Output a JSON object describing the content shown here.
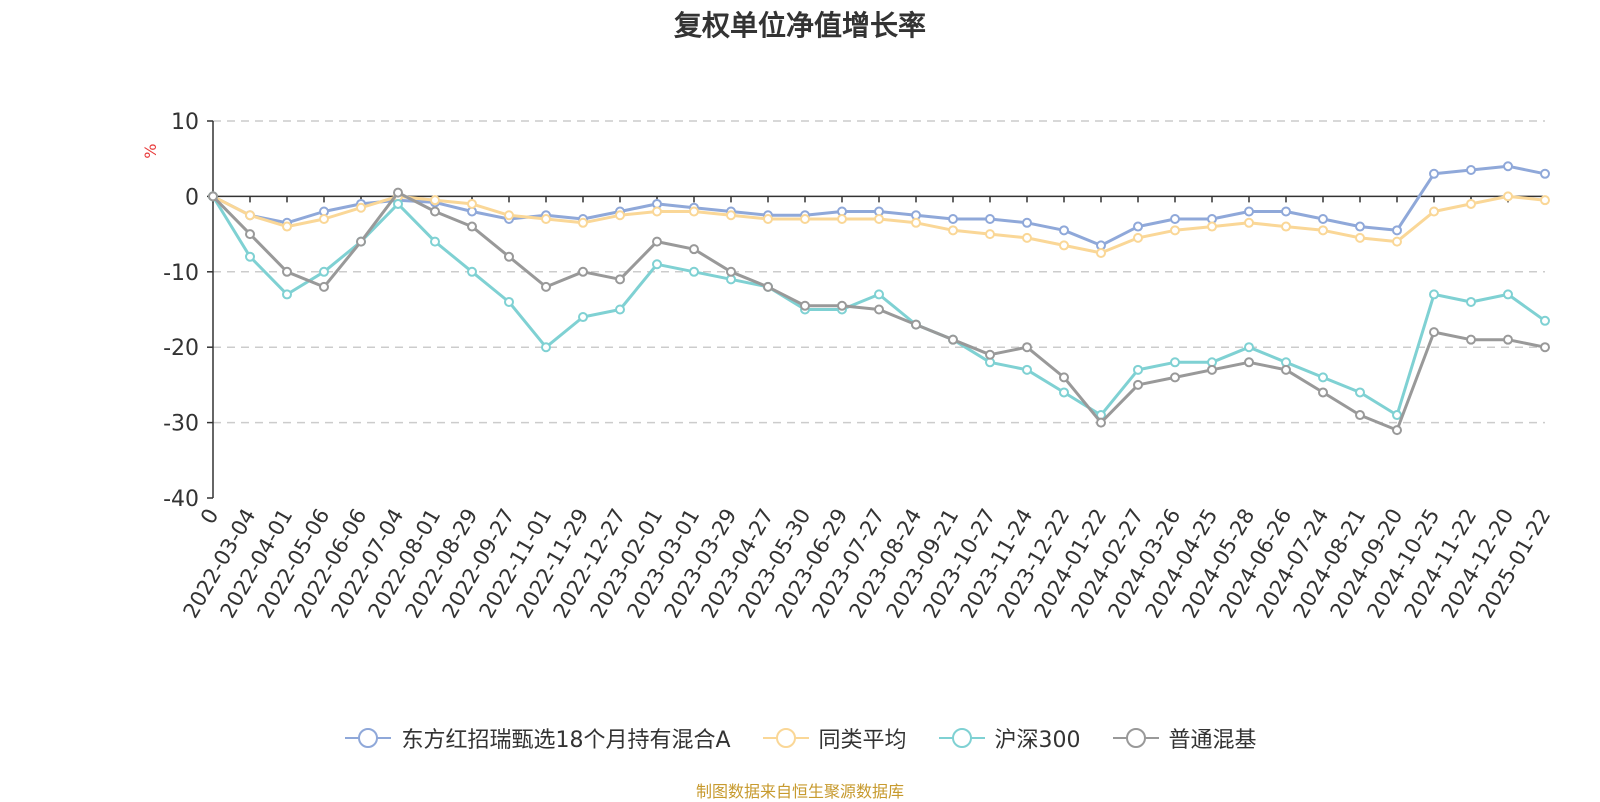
{
  "chart_data": {
    "type": "line",
    "title": "复权单位净值增长率",
    "ylabel": "%",
    "xlabel": "",
    "ylim": [
      -40,
      10
    ],
    "yticks": [
      10,
      0,
      -10,
      -20,
      -30,
      -40
    ],
    "grid": true,
    "legend_position": "bottom-center",
    "x_tick_labels": [
      "0",
      "2022-03-04",
      "2022-04-01",
      "2022-05-06",
      "2022-06-06",
      "2022-07-04",
      "2022-08-01",
      "2022-08-29",
      "2022-09-27",
      "2022-11-01",
      "2022-11-29",
      "2022-12-27",
      "2023-02-01",
      "2023-03-01",
      "2023-03-29",
      "2023-04-27",
      "2023-05-30",
      "2023-06-29",
      "2023-07-27",
      "2023-08-24",
      "2023-09-21",
      "2023-10-27",
      "2023-11-24",
      "2023-12-22",
      "2024-01-22",
      "2024-02-27",
      "2024-03-26",
      "2024-04-25",
      "2024-05-28",
      "2024-06-26",
      "2024-07-24",
      "2024-08-21",
      "2024-09-20",
      "2024-10-25",
      "2024-11-22",
      "2024-12-20",
      "2025-01-22"
    ],
    "series": [
      {
        "name": "东方红招瑞甄选18个月持有混合A",
        "color": "#8fa8d9",
        "values": [
          0,
          -2.5,
          -3.5,
          -2,
          -1,
          -0.5,
          -0.8,
          -2,
          -3,
          -2.5,
          -3,
          -2,
          -1,
          -1.5,
          -2,
          -2.5,
          -2.5,
          -2,
          -2,
          -2.5,
          -3,
          -3,
          -3.5,
          -4.5,
          -6.5,
          -4,
          -3,
          -3,
          -2,
          -2,
          -3,
          -4,
          -4.5,
          3,
          3.5,
          4,
          3
        ]
      },
      {
        "name": "同类平均",
        "color": "#fad797",
        "values": [
          0,
          -2.5,
          -4,
          -3,
          -1.5,
          0,
          -0.5,
          -1,
          -2.5,
          -3,
          -3.5,
          -2.5,
          -2,
          -2,
          -2.5,
          -3,
          -3,
          -3,
          -3,
          -3.5,
          -4.5,
          -5,
          -5.5,
          -6.5,
          -7.5,
          -5.5,
          -4.5,
          -4,
          -3.5,
          -4,
          -4.5,
          -5.5,
          -6,
          -2,
          -1,
          0,
          -0.5
        ]
      },
      {
        "name": "沪深300",
        "color": "#7fd1d3",
        "values": [
          0,
          -8,
          -13,
          -10,
          -6,
          -1,
          -6,
          -10,
          -14,
          -20,
          -16,
          -15,
          -9,
          -10,
          -11,
          -12,
          -15,
          -15,
          -13,
          -17,
          -19,
          -22,
          -23,
          -26,
          -29,
          -23,
          -22,
          -22,
          -20,
          -22,
          -24,
          -26,
          -29,
          -13,
          -14,
          -13,
          -16.5
        ]
      },
      {
        "name": "普通混基",
        "color": "#999999",
        "values": [
          0,
          -5,
          -10,
          -12,
          -6,
          0.5,
          -2,
          -4,
          -8,
          -12,
          -10,
          -11,
          -6,
          -7,
          -10,
          -12,
          -14.5,
          -14.5,
          -15,
          -17,
          -19,
          -21,
          -20,
          -24,
          -30,
          -25,
          -24,
          -23,
          -22,
          -23,
          -26,
          -29,
          -31,
          -18,
          -19,
          -19,
          -20
        ]
      }
    ]
  },
  "legend": {
    "items": [
      {
        "label": "东方红招瑞甄选18个月持有混合A",
        "color": "#8fa8d9"
      },
      {
        "label": "同类平均",
        "color": "#fad797"
      },
      {
        "label": "沪深300",
        "color": "#7fd1d3"
      },
      {
        "label": "普通混基",
        "color": "#999999"
      }
    ]
  },
  "source_note": "制图数据来自恒生聚源数据库"
}
